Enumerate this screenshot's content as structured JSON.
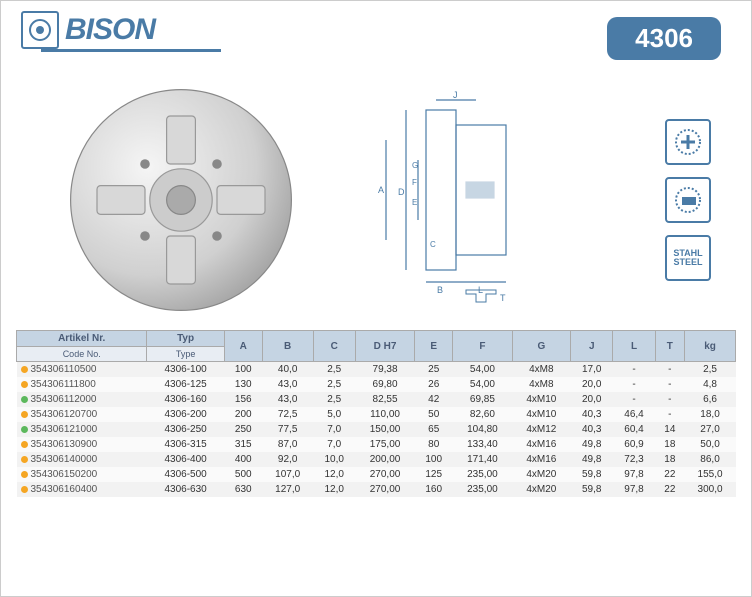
{
  "header": {
    "brand": "BISON",
    "model": "4306"
  },
  "badges": {
    "b1_label": "",
    "b2_label": "",
    "b3_label": "STAHL STEEL"
  },
  "table": {
    "head1": {
      "c0": "Artikel Nr.",
      "c1": "Typ",
      "c2": "A",
      "c3": "B",
      "c4": "C",
      "c5": "D H7",
      "c6": "E",
      "c7": "F",
      "c8": "G",
      "c9": "J",
      "c10": "L",
      "c11": "T",
      "c12": "kg"
    },
    "head2": {
      "c0": "Code No.",
      "c1": "Type"
    },
    "rows": [
      {
        "dot": "o",
        "code": "354306110500",
        "typ": "4306-100",
        "A": "100",
        "B": "40,0",
        "C": "2,5",
        "DH7": "79,38",
        "E": "25",
        "F": "54,00",
        "G": "4xM8",
        "J": "17,0",
        "L": "-",
        "T": "-",
        "kg": "2,5"
      },
      {
        "dot": "o",
        "code": "354306111800",
        "typ": "4306-125",
        "A": "130",
        "B": "43,0",
        "C": "2,5",
        "DH7": "69,80",
        "E": "26",
        "F": "54,00",
        "G": "4xM8",
        "J": "20,0",
        "L": "-",
        "T": "-",
        "kg": "4,8"
      },
      {
        "dot": "g",
        "code": "354306112000",
        "typ": "4306-160",
        "A": "156",
        "B": "43,0",
        "C": "2,5",
        "DH7": "82,55",
        "E": "42",
        "F": "69,85",
        "G": "4xM10",
        "J": "20,0",
        "L": "-",
        "T": "-",
        "kg": "6,6"
      },
      {
        "dot": "o",
        "code": "354306120700",
        "typ": "4306-200",
        "A": "200",
        "B": "72,5",
        "C": "5,0",
        "DH7": "110,00",
        "E": "50",
        "F": "82,60",
        "G": "4xM10",
        "J": "40,3",
        "L": "46,4",
        "T": "-",
        "kg": "18,0"
      },
      {
        "dot": "g",
        "code": "354306121000",
        "typ": "4306-250",
        "A": "250",
        "B": "77,5",
        "C": "7,0",
        "DH7": "150,00",
        "E": "65",
        "F": "104,80",
        "G": "4xM12",
        "J": "40,3",
        "L": "60,4",
        "T": "14",
        "kg": "27,0"
      },
      {
        "dot": "o",
        "code": "354306130900",
        "typ": "4306-315",
        "A": "315",
        "B": "87,0",
        "C": "7,0",
        "DH7": "175,00",
        "E": "80",
        "F": "133,40",
        "G": "4xM16",
        "J": "49,8",
        "L": "60,9",
        "T": "18",
        "kg": "50,0"
      },
      {
        "dot": "o",
        "code": "354306140000",
        "typ": "4306-400",
        "A": "400",
        "B": "92,0",
        "C": "10,0",
        "DH7": "200,00",
        "E": "100",
        "F": "171,40",
        "G": "4xM16",
        "J": "49,8",
        "L": "72,3",
        "T": "18",
        "kg": "86,0"
      },
      {
        "dot": "o",
        "code": "354306150200",
        "typ": "4306-500",
        "A": "500",
        "B": "107,0",
        "C": "12,0",
        "DH7": "270,00",
        "E": "125",
        "F": "235,00",
        "G": "4xM20",
        "J": "59,8",
        "L": "97,8",
        "T": "22",
        "kg": "155,0"
      },
      {
        "dot": "o",
        "code": "354306160400",
        "typ": "4306-630",
        "A": "630",
        "B": "127,0",
        "C": "12,0",
        "DH7": "270,00",
        "E": "160",
        "F": "235,00",
        "G": "4xM20",
        "J": "59,8",
        "L": "97,8",
        "T": "22",
        "kg": "300,0"
      }
    ]
  }
}
